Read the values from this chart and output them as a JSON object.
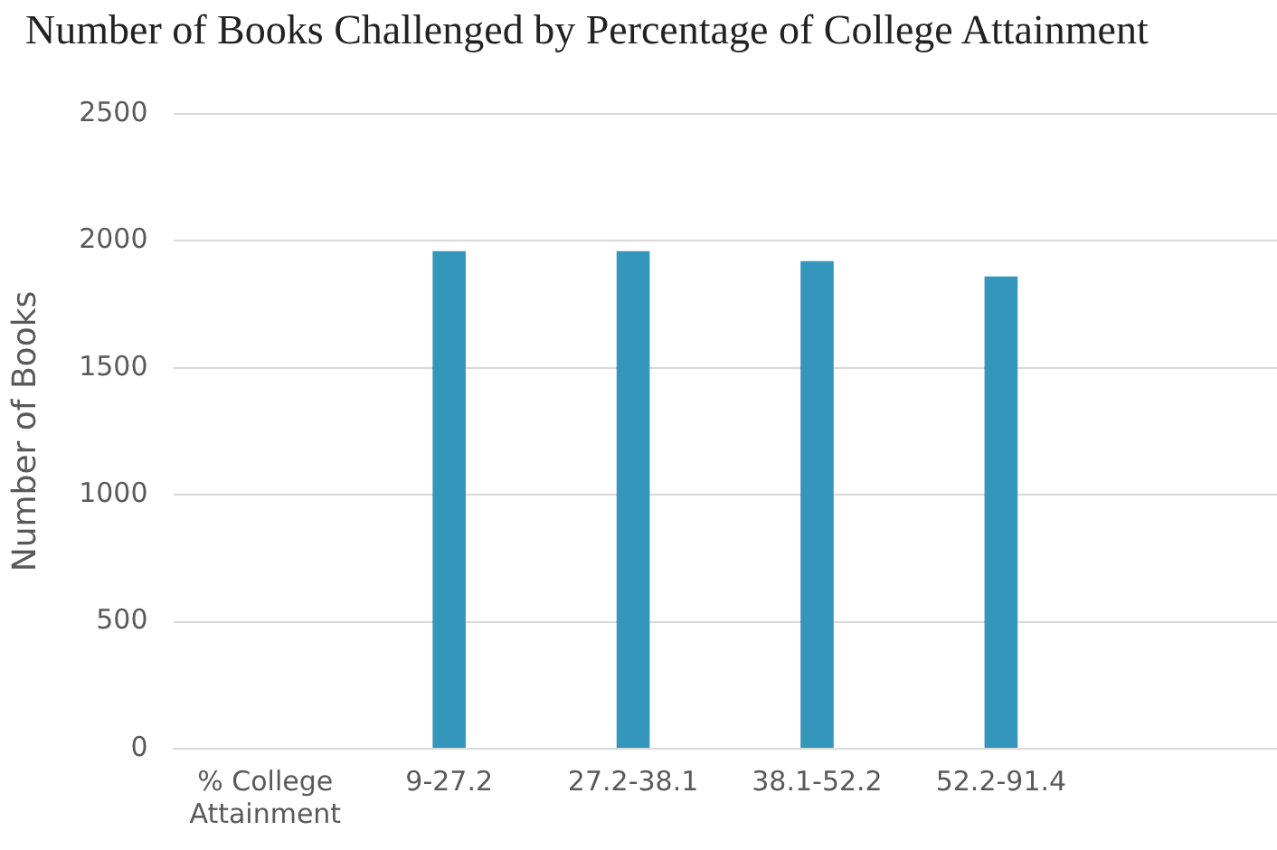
{
  "chart_data": {
    "type": "bar",
    "title": "Number of Books Challenged by Percentage of College Attainment",
    "ylabel": "Number of Books",
    "categories": [
      "% College Attainment",
      "9-27.2",
      "27.2-38.1",
      "38.1-52.2",
      "52.2-91.4",
      null
    ],
    "values": [
      null,
      1960,
      1960,
      1920,
      1860,
      null
    ],
    "color": "#3596bb",
    "ylim": [
      0,
      2500
    ],
    "yticks": [
      0,
      500,
      1000,
      1500,
      2000,
      2500
    ],
    "grid": "y"
  }
}
